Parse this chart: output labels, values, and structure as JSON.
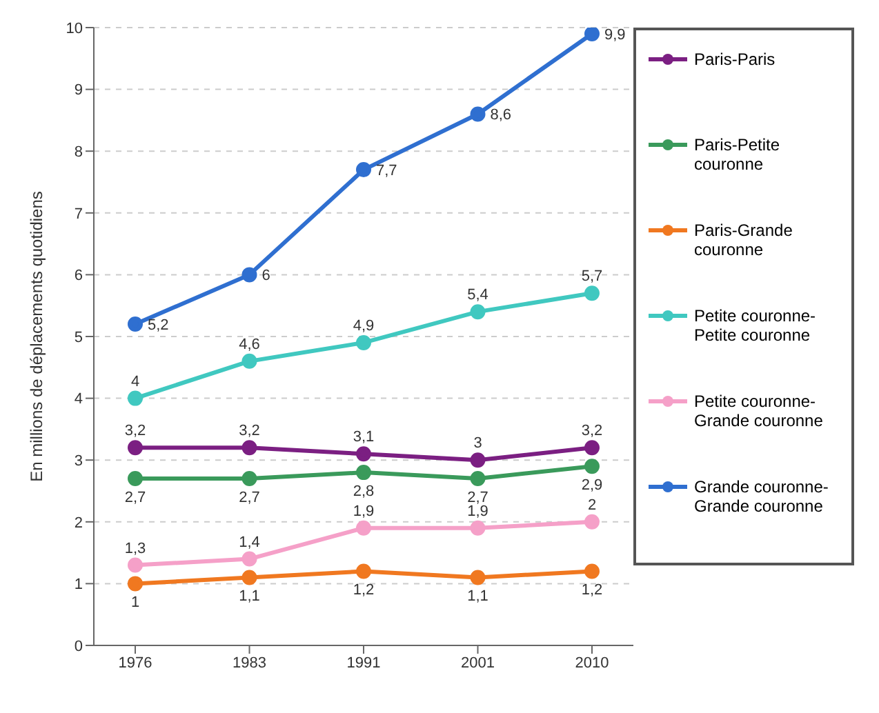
{
  "chart_data": {
    "type": "line",
    "ylabel": "En millions de déplacements quotidiens",
    "categories": [
      "1976",
      "1983",
      "1991",
      "2001",
      "2010"
    ],
    "ylim": [
      0,
      10
    ],
    "yticks": [
      0,
      1,
      2,
      3,
      4,
      5,
      6,
      7,
      8,
      9,
      10
    ],
    "grid": "y",
    "legend": "right",
    "marker": "circle",
    "line_style": "solid",
    "series": [
      {
        "name": "Paris-Paris",
        "color": "#7b1f82",
        "values": [
          3.2,
          3.2,
          3.1,
          3,
          3.2
        ],
        "value_labels": [
          "3,2",
          "3,2",
          "3,1",
          "3",
          "3,2"
        ]
      },
      {
        "name": "Paris-Petite couronne",
        "color": "#3a9a5b",
        "values": [
          2.7,
          2.7,
          2.8,
          2.7,
          2.9
        ],
        "value_labels": [
          "2,7",
          "2,7",
          "2,8",
          "2,7",
          "2,9"
        ]
      },
      {
        "name": "Paris-Grande couronne",
        "color": "#f07820",
        "values": [
          1,
          1.1,
          1.2,
          1.1,
          1.2
        ],
        "value_labels": [
          "1",
          "1,1",
          "1,2",
          "1,1",
          "1,2"
        ]
      },
      {
        "name": "Petite couronne-Petite couronne",
        "color": "#40c8c0",
        "values": [
          4,
          4.6,
          4.9,
          5.4,
          5.7
        ],
        "value_labels": [
          "4",
          "4,6",
          "4,9",
          "5,4",
          "5,7"
        ]
      },
      {
        "name": "Petite couronne-Grande couronne",
        "color": "#f5a0c8",
        "values": [
          1.3,
          1.4,
          1.9,
          1.9,
          2
        ],
        "value_labels": [
          "1,3",
          "1,4",
          "1,9",
          "1,9",
          "2"
        ]
      },
      {
        "name": "Grande couronne-Grande couronne",
        "color": "#2f6fd0",
        "values": [
          5.2,
          6,
          7.7,
          8.6,
          9.9
        ],
        "value_labels": [
          "5,2",
          "6",
          "7,7",
          "8,6",
          "9,9"
        ]
      }
    ]
  }
}
